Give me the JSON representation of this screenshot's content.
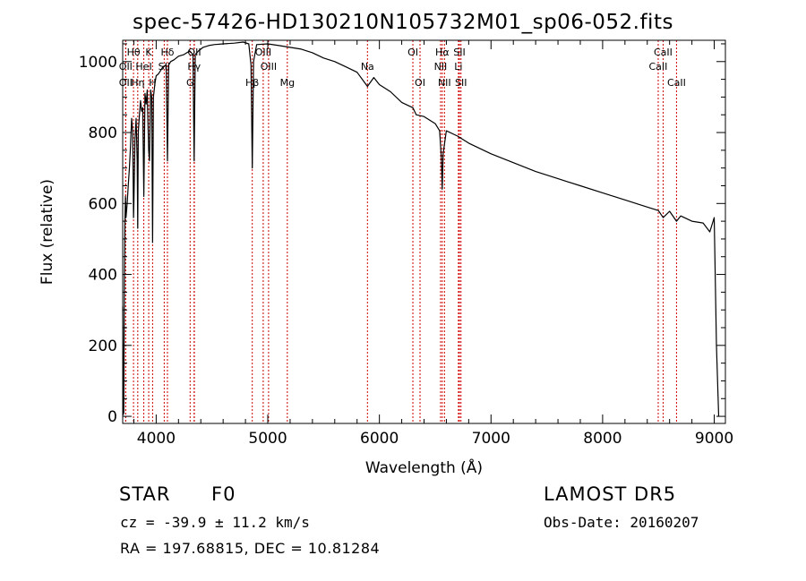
{
  "chart_data": {
    "type": "line",
    "title": "spec-57426-HD130210N105732M01_sp06-052.fits",
    "xlabel": "Wavelength (Å)",
    "ylabel": "Flux (relative)",
    "xlim": [
      3700,
      9100
    ],
    "ylim": [
      -20,
      1060
    ],
    "xticks": [
      4000,
      5000,
      6000,
      7000,
      8000,
      9000
    ],
    "yticks": [
      0,
      200,
      400,
      600,
      800,
      1000
    ],
    "x": [
      3700,
      3705,
      3710,
      3715,
      3720,
      3725,
      3730,
      3740,
      3750,
      3760,
      3770,
      3780,
      3790,
      3797,
      3800,
      3810,
      3820,
      3830,
      3835,
      3840,
      3850,
      3860,
      3870,
      3880,
      3889,
      3900,
      3910,
      3920,
      3933,
      3940,
      3950,
      3960,
      3968,
      3975,
      3990,
      4000,
      4020,
      4040,
      4060,
      4090,
      4101,
      4112,
      4130,
      4160,
      4200,
      4250,
      4300,
      4330,
      4340,
      4350,
      4380,
      4420,
      4470,
      4520,
      4600,
      4700,
      4780,
      4830,
      4850,
      4861,
      4872,
      4900,
      5000,
      5100,
      5200,
      5300,
      5400,
      5500,
      5600,
      5700,
      5800,
      5893,
      5950,
      6000,
      6100,
      6200,
      6300,
      6330,
      6400,
      6500,
      6540,
      6555,
      6563,
      6571,
      6600,
      6700,
      6800,
      7000,
      7200,
      7400,
      7600,
      7800,
      8000,
      8200,
      8400,
      8500,
      8542,
      8600,
      8662,
      8700,
      8800,
      8900,
      8960,
      9000,
      9020,
      9040
    ],
    "y": [
      310,
      5,
      10,
      380,
      550,
      620,
      560,
      600,
      650,
      700,
      760,
      840,
      800,
      560,
      600,
      780,
      840,
      720,
      530,
      800,
      850,
      890,
      860,
      870,
      620,
      910,
      880,
      920,
      750,
      720,
      920,
      900,
      490,
      900,
      940,
      960,
      965,
      975,
      985,
      990,
      720,
      990,
      1000,
      1005,
      1015,
      1020,
      1030,
      1020,
      720,
      1020,
      1030,
      1040,
      1045,
      1048,
      1050,
      1052,
      1055,
      1050,
      990,
      700,
      1000,
      1048,
      1050,
      1045,
      1040,
      1035,
      1025,
      1010,
      1000,
      985,
      970,
      930,
      955,
      935,
      915,
      885,
      870,
      850,
      845,
      825,
      805,
      730,
      640,
      740,
      805,
      790,
      770,
      740,
      715,
      690,
      670,
      650,
      630,
      610,
      590,
      580,
      560,
      578,
      550,
      565,
      550,
      545,
      520,
      560,
      200,
      0
    ],
    "lines": [
      {
        "label": "Hθ",
        "x": 3797,
        "row": 0
      },
      {
        "label": "K",
        "x": 3933,
        "row": 0
      },
      {
        "label": "Hδ",
        "x": 4101,
        "row": 0
      },
      {
        "label": "OII",
        "x": 4342,
        "row": 0
      },
      {
        "label": "OIII",
        "x": 4959,
        "row": 0
      },
      {
        "label": "OI",
        "x": 6300,
        "row": 0
      },
      {
        "label": "Hα",
        "x": 6563,
        "row": 0
      },
      {
        "label": "SII",
        "x": 6717,
        "row": 0
      },
      {
        "label": "CaII",
        "x": 8542,
        "row": 0
      },
      {
        "label": "OII",
        "x": 3727,
        "row": 1
      },
      {
        "label": "HeI",
        "x": 3889,
        "row": 1
      },
      {
        "label": "SII",
        "x": 4072,
        "row": 1
      },
      {
        "label": "Hγ",
        "x": 4340,
        "row": 1
      },
      {
        "label": "OIII",
        "x": 5007,
        "row": 1
      },
      {
        "label": "Na",
        "x": 5893,
        "row": 1
      },
      {
        "label": "NII",
        "x": 6548,
        "row": 1
      },
      {
        "label": "Li",
        "x": 6708,
        "row": 1
      },
      {
        "label": "CaII",
        "x": 8498,
        "row": 1
      },
      {
        "label": "OII",
        "x": 3727,
        "row": 2
      },
      {
        "label": "Hη",
        "x": 3835,
        "row": 2
      },
      {
        "label": "H",
        "x": 3968,
        "row": 2
      },
      {
        "label": "G",
        "x": 4304,
        "row": 2
      },
      {
        "label": "Hβ",
        "x": 4861,
        "row": 2
      },
      {
        "label": "Mg",
        "x": 5175,
        "row": 2
      },
      {
        "label": "OI",
        "x": 6364,
        "row": 2
      },
      {
        "label": "NII",
        "x": 6583,
        "row": 2
      },
      {
        "label": "SII",
        "x": 6731,
        "row": 2
      },
      {
        "label": "CaII",
        "x": 8662,
        "row": 2
      }
    ],
    "line_marker_color": "#cc0000"
  },
  "info": {
    "object_type": "STAR",
    "subclass": "F0",
    "survey": "LAMOST DR5",
    "cz": "cz = -39.9 ± 11.2 km/s",
    "obs_date": "Obs-Date: 20160207",
    "coords": "RA = 197.68815, DEC =  10.81284"
  }
}
